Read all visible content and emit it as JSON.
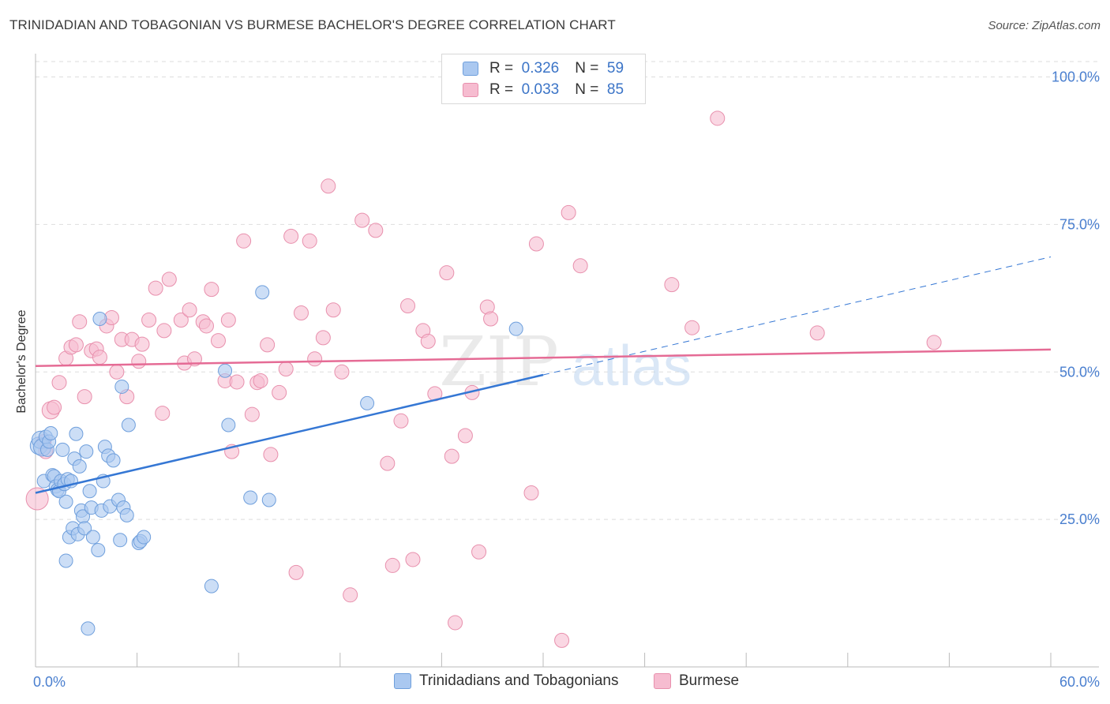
{
  "title": "TRINIDADIAN AND TOBAGONIAN VS BURMESE BACHELOR'S DEGREE CORRELATION CHART",
  "source": "Source: ZipAtlas.com",
  "watermark": {
    "zip": "ZIP",
    "atlas": "atlas"
  },
  "legend": {
    "series1": {
      "r_label": "R =",
      "r_value": "0.326",
      "n_label": "N =",
      "n_value": "59"
    },
    "series2": {
      "r_label": "R =",
      "r_value": "0.033",
      "n_label": "N =",
      "n_value": "85"
    }
  },
  "bottom_legend": {
    "series1": "Trinidadians and Tobagonians",
    "series2": "Burmese"
  },
  "colors": {
    "series1_fill": "#aac8f0",
    "series1_stroke": "#6f9fdc",
    "series1_line": "#3577d4",
    "series2_fill": "#f6bcd0",
    "series2_stroke": "#e890ad",
    "series2_line": "#e56b95",
    "tick": "#4a7fcf",
    "grid": "#dddddd"
  },
  "chart_data": {
    "type": "scatter",
    "title": "TRINIDADIAN AND TOBAGONIAN VS BURMESE BACHELOR'S DEGREE CORRELATION CHART",
    "xlabel": "",
    "ylabel": "Bachelor's Degree",
    "xlim": [
      0,
      60
    ],
    "ylim": [
      0,
      105
    ],
    "x_tick_labels": [
      "0.0%",
      "60.0%"
    ],
    "y_ticks": [
      25,
      50,
      75,
      100
    ],
    "y_tick_labels": [
      "25.0%",
      "50.0%",
      "75.0%",
      "100.0%"
    ],
    "series": [
      {
        "name": "Trinidadians and Tobagonians",
        "R": 0.326,
        "N": 59,
        "trend": {
          "x0": 0,
          "y0": 29.5,
          "x1": 30,
          "y1": 49.5,
          "dashed_to_x": 60,
          "dashed_to_y": 69.5
        },
        "points": [
          [
            0.2,
            37.5
          ],
          [
            0.3,
            38.5
          ],
          [
            0.4,
            37.2
          ],
          [
            0.5,
            31.5
          ],
          [
            0.6,
            39.0
          ],
          [
            0.7,
            36.8
          ],
          [
            0.8,
            38.2
          ],
          [
            0.9,
            39.6
          ],
          [
            1.0,
            32.5
          ],
          [
            1.1,
            32.3
          ],
          [
            1.2,
            30.6
          ],
          [
            1.3,
            30.0
          ],
          [
            1.4,
            29.8
          ],
          [
            1.5,
            31.5
          ],
          [
            1.6,
            36.8
          ],
          [
            1.7,
            31.0
          ],
          [
            1.8,
            28.0
          ],
          [
            1.8,
            18.0
          ],
          [
            1.9,
            31.8
          ],
          [
            2.0,
            22.0
          ],
          [
            2.1,
            31.5
          ],
          [
            2.2,
            23.5
          ],
          [
            2.3,
            35.3
          ],
          [
            2.4,
            39.5
          ],
          [
            2.5,
            22.5
          ],
          [
            2.6,
            34.0
          ],
          [
            2.7,
            26.5
          ],
          [
            2.8,
            25.5
          ],
          [
            2.9,
            23.5
          ],
          [
            3.0,
            36.5
          ],
          [
            3.1,
            6.5
          ],
          [
            3.2,
            29.8
          ],
          [
            3.3,
            27.0
          ],
          [
            3.4,
            22.0
          ],
          [
            3.7,
            19.8
          ],
          [
            3.8,
            59.0
          ],
          [
            3.9,
            26.5
          ],
          [
            4.0,
            31.5
          ],
          [
            4.1,
            37.3
          ],
          [
            4.3,
            35.8
          ],
          [
            4.4,
            27.2
          ],
          [
            4.6,
            35.0
          ],
          [
            4.9,
            28.3
          ],
          [
            5.0,
            21.5
          ],
          [
            5.1,
            47.5
          ],
          [
            5.2,
            27.0
          ],
          [
            5.4,
            25.7
          ],
          [
            5.5,
            41.0
          ],
          [
            6.1,
            21.0
          ],
          [
            6.2,
            21.3
          ],
          [
            6.4,
            22.0
          ],
          [
            10.4,
            13.7
          ],
          [
            11.2,
            50.2
          ],
          [
            11.4,
            41.0
          ],
          [
            12.7,
            28.7
          ],
          [
            13.4,
            63.5
          ],
          [
            13.8,
            28.3
          ],
          [
            19.6,
            44.7
          ],
          [
            28.4,
            57.3
          ]
        ],
        "sizes_note": "uniform small markers"
      },
      {
        "name": "Burmese",
        "R": 0.033,
        "N": 85,
        "trend": {
          "x0": 0,
          "y0": 51.0,
          "x1": 60,
          "y1": 53.8
        },
        "points": [
          [
            0.1,
            28.5
          ],
          [
            0.5,
            38.2
          ],
          [
            0.6,
            36.5
          ],
          [
            0.9,
            43.5
          ],
          [
            1.1,
            44.0
          ],
          [
            1.4,
            48.2
          ],
          [
            1.8,
            52.3
          ],
          [
            2.1,
            54.2
          ],
          [
            2.4,
            54.6
          ],
          [
            2.6,
            58.5
          ],
          [
            2.9,
            45.8
          ],
          [
            3.3,
            53.6
          ],
          [
            3.6,
            53.9
          ],
          [
            3.8,
            52.5
          ],
          [
            4.2,
            57.8
          ],
          [
            4.5,
            59.2
          ],
          [
            4.8,
            50.0
          ],
          [
            5.1,
            55.5
          ],
          [
            5.4,
            45.8
          ],
          [
            5.7,
            55.5
          ],
          [
            6.1,
            51.8
          ],
          [
            6.3,
            54.7
          ],
          [
            6.7,
            58.8
          ],
          [
            7.1,
            64.2
          ],
          [
            7.5,
            43.0
          ],
          [
            7.6,
            57.0
          ],
          [
            7.9,
            65.7
          ],
          [
            8.6,
            58.8
          ],
          [
            8.8,
            51.5
          ],
          [
            9.1,
            60.5
          ],
          [
            9.4,
            52.2
          ],
          [
            9.9,
            58.5
          ],
          [
            10.1,
            57.8
          ],
          [
            10.4,
            64.0
          ],
          [
            10.8,
            55.3
          ],
          [
            11.2,
            48.5
          ],
          [
            11.4,
            58.8
          ],
          [
            11.6,
            36.5
          ],
          [
            11.9,
            48.3
          ],
          [
            12.3,
            72.2
          ],
          [
            12.8,
            42.8
          ],
          [
            13.1,
            48.2
          ],
          [
            13.3,
            48.5
          ],
          [
            13.7,
            54.6
          ],
          [
            13.9,
            36.0
          ],
          [
            14.4,
            46.5
          ],
          [
            14.8,
            50.5
          ],
          [
            15.1,
            73.0
          ],
          [
            15.4,
            16.0
          ],
          [
            15.7,
            60.0
          ],
          [
            16.2,
            72.2
          ],
          [
            16.5,
            52.2
          ],
          [
            17.0,
            55.8
          ],
          [
            17.3,
            81.5
          ],
          [
            17.6,
            60.5
          ],
          [
            18.1,
            50.0
          ],
          [
            18.6,
            12.2
          ],
          [
            19.3,
            75.7
          ],
          [
            20.1,
            74.0
          ],
          [
            20.8,
            34.5
          ],
          [
            21.1,
            17.2
          ],
          [
            21.6,
            41.7
          ],
          [
            22.0,
            61.2
          ],
          [
            22.3,
            18.2
          ],
          [
            22.9,
            57.0
          ],
          [
            23.2,
            55.2
          ],
          [
            23.6,
            46.3
          ],
          [
            24.3,
            66.8
          ],
          [
            24.6,
            35.7
          ],
          [
            24.8,
            7.5
          ],
          [
            25.4,
            39.2
          ],
          [
            25.8,
            46.5
          ],
          [
            26.2,
            19.5
          ],
          [
            26.7,
            61.0
          ],
          [
            26.9,
            59.0
          ],
          [
            29.3,
            29.5
          ],
          [
            29.6,
            71.7
          ],
          [
            31.1,
            4.5
          ],
          [
            31.5,
            77.0
          ],
          [
            32.2,
            68.0
          ],
          [
            37.6,
            64.8
          ],
          [
            38.8,
            57.5
          ],
          [
            40.3,
            93.0
          ],
          [
            46.2,
            56.6
          ],
          [
            53.1,
            55.0
          ]
        ]
      }
    ]
  }
}
